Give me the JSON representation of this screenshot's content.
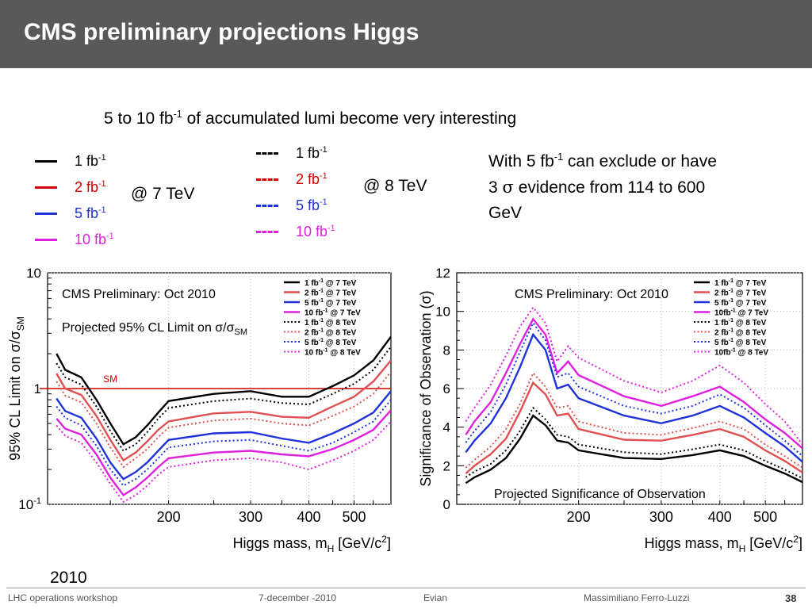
{
  "slide": {
    "title": "CMS preliminary projections Higgs",
    "lead_pre": "5 to 10 fb",
    "lead_sup": "-1",
    "lead_post": " of accumulated lumi become very interesting",
    "year": "2010"
  },
  "legend_7tev": {
    "items": [
      {
        "label": "1 fb",
        "sup": "-1",
        "color": "#000000"
      },
      {
        "label": "2 fb",
        "sup": "-1",
        "color": "#d40000"
      },
      {
        "label": "5 fb",
        "sup": "-1",
        "color": "#1f33d8"
      },
      {
        "label": "10 fb",
        "sup": "-1",
        "color": "#e020e0"
      }
    ],
    "energy_label": "@ 7 TeV"
  },
  "legend_8tev": {
    "items": [
      {
        "label": "1 fb",
        "sup": "-1",
        "color": "#000000"
      },
      {
        "label": "2 fb",
        "sup": "-1",
        "color": "#d40000"
      },
      {
        "label": "5 fb",
        "sup": "-1",
        "color": "#1f33d8"
      },
      {
        "label": "10 fb",
        "sup": "-1",
        "color": "#e020e0"
      }
    ],
    "energy_label": "@ 8 TeV"
  },
  "note": {
    "line1_pre": "With 5 fb",
    "line1_sup": "-1",
    "line1_post": " can exclude or have",
    "line2_pre": "3 ",
    "line2_sigma": "σ",
    "line2_post": " evidence from 114 to 600",
    "line3": "GeV"
  },
  "footer": {
    "event": "LHC operations workshop",
    "date": "7-december -2010",
    "location": "Evian",
    "author": "Massimiliano Ferro-Luzzi",
    "page": "38"
  },
  "chart_data": [
    {
      "type": "line",
      "title": "CMS Preliminary: Oct 2010",
      "subtitle": "Projected 95% CL Limit on σ/σSM",
      "ylabel": "95% CL Limit on σ/σSM",
      "xlabel": "Higgs mass, mH [GeV/c2]",
      "x_scale": "log",
      "y_scale": "log",
      "xlim": [
        110,
        600
      ],
      "ylim": [
        0.1,
        10
      ],
      "x_ticks": [
        200,
        300,
        400,
        500
      ],
      "y_ticks": [
        {
          "v": 10,
          "label": "10"
        },
        {
          "v": 1,
          "label": "1"
        },
        {
          "v": 0.1,
          "label": "10-1"
        }
      ],
      "reference_line": {
        "y": 1,
        "label": "SM",
        "color": "#d40000"
      },
      "legend_position": "top-right",
      "series": [
        {
          "name": "1 fb-1 @ 7 TeV",
          "color": "#000000",
          "dash": "solid",
          "x": [
            115,
            120,
            130,
            140,
            150,
            160,
            170,
            180,
            190,
            200,
            250,
            300,
            350,
            400,
            450,
            500,
            550,
            600
          ],
          "y": [
            2.0,
            1.45,
            1.25,
            0.8,
            0.5,
            0.33,
            0.38,
            0.48,
            0.62,
            0.78,
            0.9,
            0.95,
            0.85,
            0.85,
            1.05,
            1.3,
            1.75,
            2.8
          ]
        },
        {
          "name": "2 fb-1 @ 7 TeV",
          "color": "#e05050",
          "dash": "solid",
          "x": [
            115,
            120,
            130,
            140,
            150,
            160,
            170,
            180,
            190,
            200,
            250,
            300,
            350,
            400,
            450,
            500,
            550,
            600
          ],
          "y": [
            1.35,
            1.0,
            0.88,
            0.58,
            0.36,
            0.24,
            0.28,
            0.35,
            0.44,
            0.52,
            0.61,
            0.63,
            0.57,
            0.56,
            0.7,
            0.85,
            1.15,
            1.75
          ]
        },
        {
          "name": "5 fb-1 @ 7 TeV",
          "color": "#1f33d8",
          "dash": "solid",
          "x": [
            115,
            120,
            130,
            140,
            150,
            160,
            170,
            180,
            190,
            200,
            250,
            300,
            350,
            400,
            450,
            500,
            550,
            600
          ],
          "y": [
            0.82,
            0.64,
            0.56,
            0.37,
            0.23,
            0.165,
            0.19,
            0.23,
            0.29,
            0.36,
            0.41,
            0.42,
            0.37,
            0.34,
            0.41,
            0.5,
            0.62,
            0.95
          ]
        },
        {
          "name": "10 fb-1 @ 7 TeV",
          "color": "#e020e0",
          "dash": "solid",
          "x": [
            115,
            120,
            130,
            140,
            150,
            160,
            170,
            180,
            190,
            200,
            250,
            300,
            350,
            400,
            450,
            500,
            550,
            600
          ],
          "y": [
            0.55,
            0.45,
            0.4,
            0.27,
            0.17,
            0.12,
            0.14,
            0.17,
            0.21,
            0.25,
            0.28,
            0.29,
            0.27,
            0.26,
            0.3,
            0.36,
            0.44,
            0.65
          ]
        },
        {
          "name": "1 fb-1 @ 8 TeV",
          "color": "#000000",
          "dash": "dotted",
          "x": [
            115,
            120,
            130,
            140,
            150,
            160,
            170,
            180,
            190,
            200,
            250,
            300,
            350,
            400,
            450,
            500,
            550,
            600
          ],
          "y": [
            1.65,
            1.25,
            1.08,
            0.7,
            0.43,
            0.29,
            0.33,
            0.42,
            0.55,
            0.68,
            0.78,
            0.82,
            0.75,
            0.73,
            0.9,
            1.1,
            1.45,
            2.3
          ]
        },
        {
          "name": "2 fb-1 @ 8 TeV",
          "color": "#e05050",
          "dash": "dotted",
          "x": [
            115,
            120,
            130,
            140,
            150,
            160,
            170,
            180,
            190,
            200,
            250,
            300,
            350,
            400,
            450,
            500,
            550,
            600
          ],
          "y": [
            1.15,
            0.87,
            0.76,
            0.5,
            0.31,
            0.21,
            0.25,
            0.3,
            0.38,
            0.46,
            0.53,
            0.55,
            0.5,
            0.48,
            0.58,
            0.7,
            0.9,
            1.4
          ]
        },
        {
          "name": "5 fb-1 @ 8 TeV",
          "color": "#1f33d8",
          "dash": "dotted",
          "x": [
            115,
            120,
            130,
            140,
            150,
            160,
            170,
            180,
            190,
            200,
            250,
            300,
            350,
            400,
            450,
            500,
            550,
            600
          ],
          "y": [
            0.7,
            0.56,
            0.48,
            0.32,
            0.2,
            0.145,
            0.165,
            0.2,
            0.25,
            0.31,
            0.35,
            0.36,
            0.32,
            0.29,
            0.34,
            0.42,
            0.52,
            0.8
          ]
        },
        {
          "name": "10 fb-1 @ 8 TeV",
          "color": "#e020e0",
          "dash": "dotted",
          "x": [
            115,
            120,
            130,
            140,
            150,
            160,
            170,
            180,
            190,
            200,
            250,
            300,
            350,
            400,
            450,
            500,
            550,
            600
          ],
          "y": [
            0.48,
            0.39,
            0.34,
            0.23,
            0.15,
            0.105,
            0.12,
            0.145,
            0.18,
            0.21,
            0.24,
            0.25,
            0.23,
            0.2,
            0.24,
            0.29,
            0.36,
            0.52
          ]
        }
      ]
    },
    {
      "type": "line",
      "title": "CMS Preliminary: Oct 2010",
      "subtitle": "Projected Significance of Observation",
      "ylabel": "Significance of Observation (σ)",
      "xlabel": "Higgs mass, mH [GeV/c2]",
      "x_scale": "log",
      "y_scale": "linear",
      "xlim": [
        110,
        600
      ],
      "ylim": [
        0,
        12
      ],
      "x_ticks": [
        200,
        300,
        400,
        500
      ],
      "y_ticks": [
        {
          "v": 0,
          "label": "0"
        },
        {
          "v": 2,
          "label": "2"
        },
        {
          "v": 4,
          "label": "4"
        },
        {
          "v": 6,
          "label": "6"
        },
        {
          "v": 8,
          "label": "8"
        },
        {
          "v": 10,
          "label": "10"
        },
        {
          "v": 12,
          "label": "12"
        }
      ],
      "legend_position": "top-right",
      "series": [
        {
          "name": "1 fb-1 @ 7 TeV",
          "color": "#000000",
          "dash": "solid",
          "x": [
            115,
            120,
            130,
            140,
            150,
            160,
            170,
            180,
            190,
            200,
            250,
            300,
            350,
            400,
            450,
            500,
            550,
            600
          ],
          "y": [
            1.1,
            1.4,
            1.8,
            2.4,
            3.4,
            4.6,
            4.1,
            3.3,
            3.2,
            2.8,
            2.4,
            2.35,
            2.55,
            2.8,
            2.5,
            2.0,
            1.6,
            1.15
          ]
        },
        {
          "name": "2 fb-1 @ 7 TeV",
          "color": "#e05050",
          "dash": "solid",
          "x": [
            115,
            120,
            130,
            140,
            150,
            160,
            170,
            180,
            190,
            200,
            250,
            300,
            350,
            400,
            450,
            500,
            550,
            600
          ],
          "y": [
            1.6,
            2.0,
            2.6,
            3.4,
            4.8,
            6.3,
            5.7,
            4.6,
            4.7,
            3.9,
            3.35,
            3.3,
            3.6,
            3.9,
            3.5,
            2.8,
            2.25,
            1.65
          ]
        },
        {
          "name": "5 fb-1 @ 7 TeV",
          "color": "#1f33d8",
          "dash": "solid",
          "x": [
            115,
            120,
            130,
            140,
            150,
            160,
            170,
            180,
            190,
            200,
            250,
            300,
            350,
            400,
            450,
            500,
            550,
            600
          ],
          "y": [
            2.7,
            3.3,
            4.2,
            5.5,
            7.1,
            8.8,
            8.0,
            6.0,
            6.2,
            5.5,
            4.6,
            4.2,
            4.6,
            5.1,
            4.5,
            3.7,
            3.0,
            2.2
          ]
        },
        {
          "name": "10fb-1 @ 7 TeV",
          "color": "#e020e0",
          "dash": "solid",
          "x": [
            115,
            120,
            130,
            140,
            150,
            160,
            170,
            180,
            190,
            200,
            250,
            300,
            350,
            400,
            450,
            500,
            550,
            600
          ],
          "y": [
            3.6,
            4.3,
            5.3,
            6.8,
            8.3,
            9.6,
            8.8,
            6.8,
            7.4,
            6.7,
            5.6,
            5.1,
            5.6,
            6.1,
            5.3,
            4.4,
            3.7,
            2.9
          ]
        },
        {
          "name": "1 fb-1 @ 8 TeV",
          "color": "#000000",
          "dash": "dotted",
          "x": [
            115,
            120,
            130,
            140,
            150,
            160,
            170,
            180,
            190,
            200,
            250,
            300,
            350,
            400,
            450,
            500,
            550,
            600
          ],
          "y": [
            1.4,
            1.7,
            2.1,
            2.8,
            3.8,
            5.0,
            4.4,
            3.6,
            3.5,
            3.1,
            2.7,
            2.6,
            2.85,
            3.1,
            2.8,
            2.25,
            1.8,
            1.35
          ]
        },
        {
          "name": "2 fb-1 @ 8 TeV",
          "color": "#e05050",
          "dash": "dotted",
          "x": [
            115,
            120,
            130,
            140,
            150,
            160,
            170,
            180,
            190,
            200,
            250,
            300,
            350,
            400,
            450,
            500,
            550,
            600
          ],
          "y": [
            1.9,
            2.3,
            3.0,
            3.9,
            5.2,
            6.8,
            6.1,
            5.0,
            5.1,
            4.3,
            3.7,
            3.6,
            3.95,
            4.3,
            3.9,
            3.1,
            2.5,
            1.9
          ]
        },
        {
          "name": "5 fb-1 @ 8 TeV",
          "color": "#1f33d8",
          "dash": "dotted",
          "x": [
            115,
            120,
            130,
            140,
            150,
            160,
            170,
            180,
            190,
            200,
            250,
            300,
            350,
            400,
            450,
            500,
            550,
            600
          ],
          "y": [
            3.2,
            3.8,
            4.8,
            6.2,
            7.9,
            9.4,
            8.5,
            6.6,
            6.8,
            6.1,
            5.1,
            4.7,
            5.1,
            5.7,
            5.0,
            4.1,
            3.3,
            2.5
          ]
        },
        {
          "name": "10fb-1 @ 8 TeV",
          "color": "#e020e0",
          "dash": "dotted",
          "x": [
            115,
            120,
            130,
            140,
            150,
            160,
            170,
            180,
            190,
            200,
            250,
            300,
            350,
            400,
            450,
            500,
            550,
            600
          ],
          "y": [
            4.3,
            5.0,
            6.2,
            7.7,
            9.2,
            10.2,
            9.4,
            7.4,
            8.2,
            7.6,
            6.4,
            5.8,
            6.4,
            7.2,
            6.3,
            5.2,
            4.3,
            3.1
          ]
        }
      ]
    }
  ]
}
